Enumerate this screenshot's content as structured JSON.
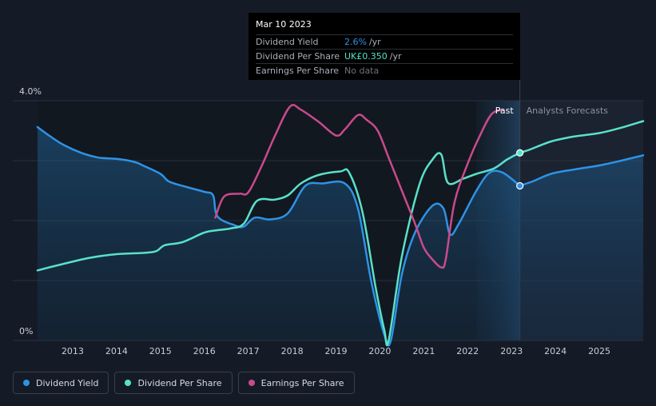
{
  "chart_data": {
    "type": "line",
    "y_axis": {
      "top_label": "4.0%",
      "bottom_label": "0%",
      "ylim": [
        0,
        4.0
      ],
      "unit": "%"
    },
    "x_ticks": [
      "2013",
      "2014",
      "2015",
      "2016",
      "2017",
      "2018",
      "2019",
      "2020",
      "2021",
      "2022",
      "2023",
      "2024",
      "2025"
    ],
    "xlim": [
      2012.2,
      2026.0
    ],
    "region_labels": {
      "past": "Past",
      "forecast": "Analysts Forecasts"
    },
    "past_end_x": 2023.19,
    "series": [
      {
        "name": "Dividend Yield",
        "color": "#2e93e6",
        "points": [
          [
            2012.2,
            3.56
          ],
          [
            2012.5,
            3.4
          ],
          [
            2012.8,
            3.26
          ],
          [
            2013.2,
            3.13
          ],
          [
            2013.6,
            3.05
          ],
          [
            2014.0,
            3.03
          ],
          [
            2014.4,
            2.98
          ],
          [
            2014.6,
            2.92
          ],
          [
            2015.0,
            2.78
          ],
          [
            2015.2,
            2.65
          ],
          [
            2015.6,
            2.56
          ],
          [
            2016.0,
            2.48
          ],
          [
            2016.2,
            2.42
          ],
          [
            2016.3,
            2.07
          ],
          [
            2016.7,
            1.92
          ],
          [
            2016.9,
            1.9
          ],
          [
            2017.15,
            2.05
          ],
          [
            2017.5,
            2.02
          ],
          [
            2017.9,
            2.12
          ],
          [
            2018.3,
            2.58
          ],
          [
            2018.7,
            2.62
          ],
          [
            2019.2,
            2.62
          ],
          [
            2019.5,
            2.2
          ],
          [
            2019.8,
            1.0
          ],
          [
            2020.1,
            0.1
          ],
          [
            2020.25,
            0.0
          ],
          [
            2020.5,
            1.1
          ],
          [
            2020.8,
            1.8
          ],
          [
            2021.2,
            2.25
          ],
          [
            2021.45,
            2.2
          ],
          [
            2021.6,
            1.77
          ],
          [
            2021.8,
            1.95
          ],
          [
            2022.2,
            2.5
          ],
          [
            2022.5,
            2.8
          ],
          [
            2022.8,
            2.8
          ],
          [
            2023.19,
            2.58
          ]
        ]
      },
      {
        "name": "Dividend Per Share",
        "color": "#59e1c9",
        "points": [
          [
            2012.2,
            1.17
          ],
          [
            2012.8,
            1.28
          ],
          [
            2013.4,
            1.38
          ],
          [
            2014.0,
            1.44
          ],
          [
            2014.6,
            1.46
          ],
          [
            2014.9,
            1.49
          ],
          [
            2015.1,
            1.59
          ],
          [
            2015.5,
            1.64
          ],
          [
            2016.0,
            1.8
          ],
          [
            2016.3,
            1.84
          ],
          [
            2016.6,
            1.87
          ],
          [
            2016.9,
            1.95
          ],
          [
            2017.2,
            2.33
          ],
          [
            2017.6,
            2.35
          ],
          [
            2017.9,
            2.42
          ],
          [
            2018.2,
            2.62
          ],
          [
            2018.6,
            2.76
          ],
          [
            2019.1,
            2.82
          ],
          [
            2019.3,
            2.8
          ],
          [
            2019.6,
            2.15
          ],
          [
            2019.9,
            0.9
          ],
          [
            2020.1,
            0.18
          ],
          [
            2020.2,
            0.0
          ],
          [
            2020.5,
            1.4
          ],
          [
            2020.9,
            2.6
          ],
          [
            2021.2,
            3.02
          ],
          [
            2021.4,
            3.1
          ],
          [
            2021.55,
            2.63
          ],
          [
            2021.9,
            2.7
          ],
          [
            2022.2,
            2.78
          ],
          [
            2022.6,
            2.87
          ],
          [
            2022.9,
            3.02
          ],
          [
            2023.19,
            3.13
          ],
          [
            2023.4,
            3.18
          ],
          [
            2023.9,
            3.32
          ],
          [
            2024.4,
            3.4
          ],
          [
            2025.0,
            3.46
          ],
          [
            2025.5,
            3.55
          ],
          [
            2026.0,
            3.66
          ]
        ]
      },
      {
        "name": "Earnings Per Share",
        "color": "#c94a8d",
        "points": [
          [
            2016.25,
            2.05
          ],
          [
            2016.45,
            2.4
          ],
          [
            2016.8,
            2.45
          ],
          [
            2017.0,
            2.47
          ],
          [
            2017.3,
            2.9
          ],
          [
            2017.6,
            3.4
          ],
          [
            2017.95,
            3.9
          ],
          [
            2018.2,
            3.85
          ],
          [
            2018.6,
            3.65
          ],
          [
            2019.0,
            3.42
          ],
          [
            2019.2,
            3.52
          ],
          [
            2019.5,
            3.76
          ],
          [
            2019.7,
            3.68
          ],
          [
            2019.95,
            3.5
          ],
          [
            2020.2,
            3.05
          ],
          [
            2020.5,
            2.5
          ],
          [
            2020.8,
            1.95
          ],
          [
            2021.0,
            1.55
          ],
          [
            2021.2,
            1.35
          ],
          [
            2021.4,
            1.22
          ],
          [
            2021.5,
            1.35
          ],
          [
            2021.7,
            2.3
          ],
          [
            2022.0,
            2.95
          ],
          [
            2022.3,
            3.45
          ],
          [
            2022.55,
            3.78
          ],
          [
            2022.8,
            3.85
          ]
        ]
      }
    ],
    "forecast_series": [
      {
        "name": "Dividend Yield",
        "color": "#2e93e6",
        "points": [
          [
            2023.19,
            2.58
          ],
          [
            2023.5,
            2.66
          ],
          [
            2023.9,
            2.78
          ],
          [
            2024.4,
            2.85
          ],
          [
            2025.0,
            2.92
          ],
          [
            2025.5,
            3.0
          ],
          [
            2026.0,
            3.09
          ]
        ]
      }
    ],
    "markers": [
      {
        "series": "Dividend Yield",
        "x": 2023.19,
        "y": 2.58,
        "color": "#2e93e6"
      },
      {
        "series": "Dividend Per Share",
        "x": 2023.19,
        "y": 3.13,
        "color": "#59e1c9"
      }
    ]
  },
  "tooltip": {
    "date": "Mar 10 2023",
    "rows": [
      {
        "label": "Dividend Yield",
        "value": "2.6%",
        "unit": "/yr",
        "value_color": "#2e93e6"
      },
      {
        "label": "Dividend Per Share",
        "value": "UK£0.350",
        "unit": "/yr",
        "value_color": "#59e1c9"
      },
      {
        "label": "Earnings Per Share",
        "value": "No data",
        "unit": "",
        "value_color": "#6c727b"
      }
    ]
  },
  "legend": [
    {
      "label": "Dividend Yield",
      "color": "#2e93e6"
    },
    {
      "label": "Dividend Per Share",
      "color": "#59e1c9"
    },
    {
      "label": "Earnings Per Share",
      "color": "#c94a8d"
    }
  ]
}
